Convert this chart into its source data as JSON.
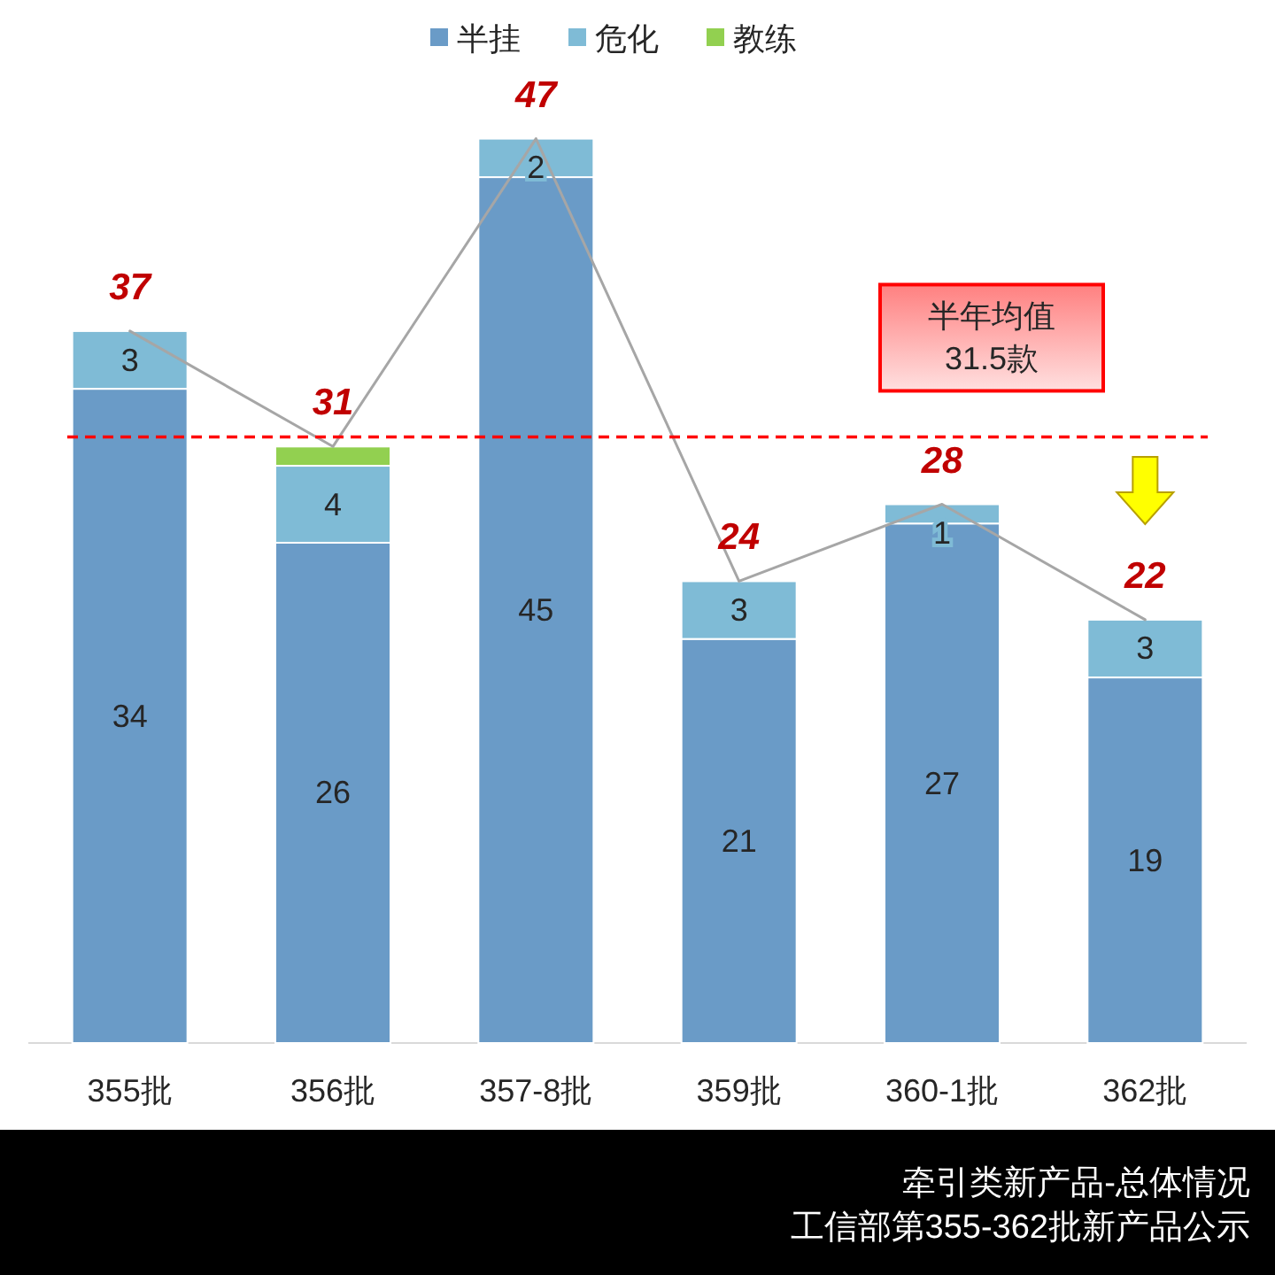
{
  "chart_data": {
    "type": "bar",
    "stacked": true,
    "categories": [
      "355批",
      "356批",
      "357-8批",
      "359批",
      "360-1批",
      "362批"
    ],
    "series": [
      {
        "name": "半挂",
        "color": "#6a9bc7",
        "values": [
          34,
          26,
          45,
          21,
          27,
          19
        ],
        "value_labels": [
          "34",
          "26",
          "45",
          "21",
          "27",
          "19"
        ]
      },
      {
        "name": "危化",
        "color": "#7fbbd6",
        "values": [
          3,
          4,
          2,
          3,
          1,
          3
        ],
        "value_labels": [
          "3",
          "4",
          "2",
          "3",
          "1",
          "3"
        ]
      },
      {
        "name": "教练",
        "color": "#92d050",
        "values": [
          null,
          1,
          null,
          null,
          null,
          null
        ],
        "value_labels": [
          null,
          null,
          null,
          null,
          null,
          null
        ]
      },
      {
        "type": "line",
        "color": "#a6a6a6",
        "values": [
          37,
          31,
          47,
          24,
          28,
          22
        ],
        "value_labels": [
          "37",
          "31",
          "47",
          "24",
          "28",
          "22"
        ]
      }
    ],
    "grid": false,
    "ref_lines": [
      {
        "axis": "y",
        "value": 31.5,
        "label": "半年均值\n31.5款",
        "color": "#ff0000",
        "line_style": "dashed"
      }
    ],
    "legend": "top",
    "annotations": [
      "牵引类新产品-总体情况",
      "工信部第355-362批新产品公示"
    ]
  }
}
